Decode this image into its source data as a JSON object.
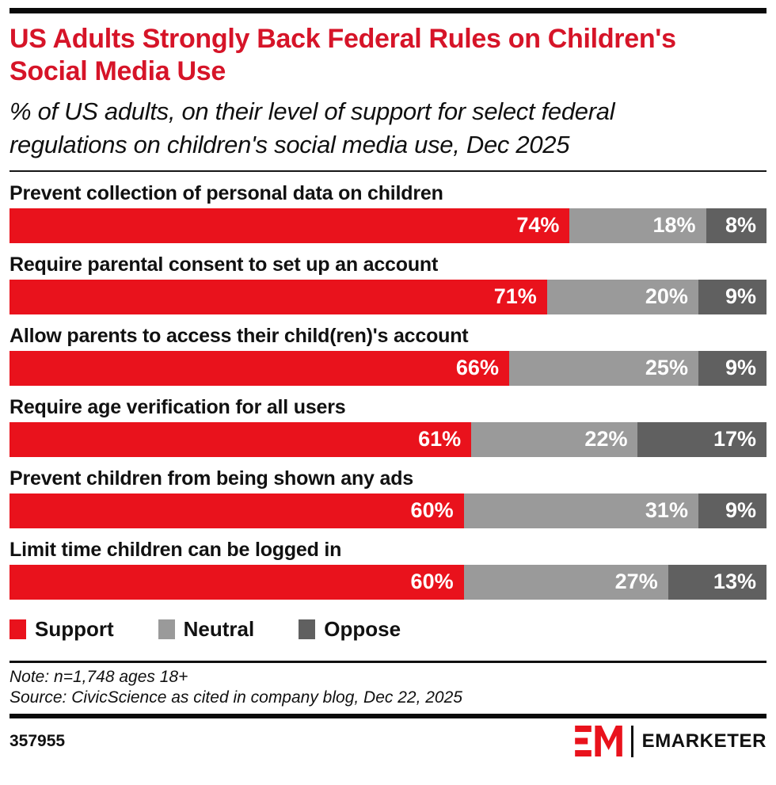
{
  "colors": {
    "title_red": "#d61428",
    "support_red": "#e9121c",
    "neutral_gray": "#9a9a9a",
    "oppose_gray": "#606060",
    "brand_red": "#e9121c",
    "text_black": "#111111"
  },
  "header": {
    "title": "US Adults Strongly Back Federal Rules on Children's Social Media Use",
    "subtitle": "% of US adults, on their level of support for select federal regulations on children's social media use, Dec 2025"
  },
  "chart_data": {
    "type": "bar",
    "orientation": "horizontal",
    "stacked": true,
    "unit": "%",
    "xlim": [
      0,
      100
    ],
    "legend_position": "bottom",
    "value_labels": "inside-right",
    "categories": [
      "Prevent collection of personal data on children",
      "Require parental consent to set up an account",
      "Allow parents to access their child(ren)'s account",
      "Require age verification for all users",
      "Prevent children from being shown any ads",
      "Limit time children can be logged in"
    ],
    "series": [
      {
        "name": "Support",
        "color": "#e9121c",
        "values": [
          74,
          71,
          66,
          61,
          60,
          60
        ]
      },
      {
        "name": "Neutral",
        "color": "#9a9a9a",
        "values": [
          18,
          20,
          25,
          22,
          31,
          27
        ]
      },
      {
        "name": "Oppose",
        "color": "#606060",
        "values": [
          8,
          9,
          9,
          17,
          9,
          13
        ]
      }
    ]
  },
  "footer": {
    "note": "Note: n=1,748 ages 18+",
    "source": "Source: CivicScience as cited in company blog, Dec 22, 2025",
    "chart_id": "357955",
    "brand": "EMARKETER"
  }
}
